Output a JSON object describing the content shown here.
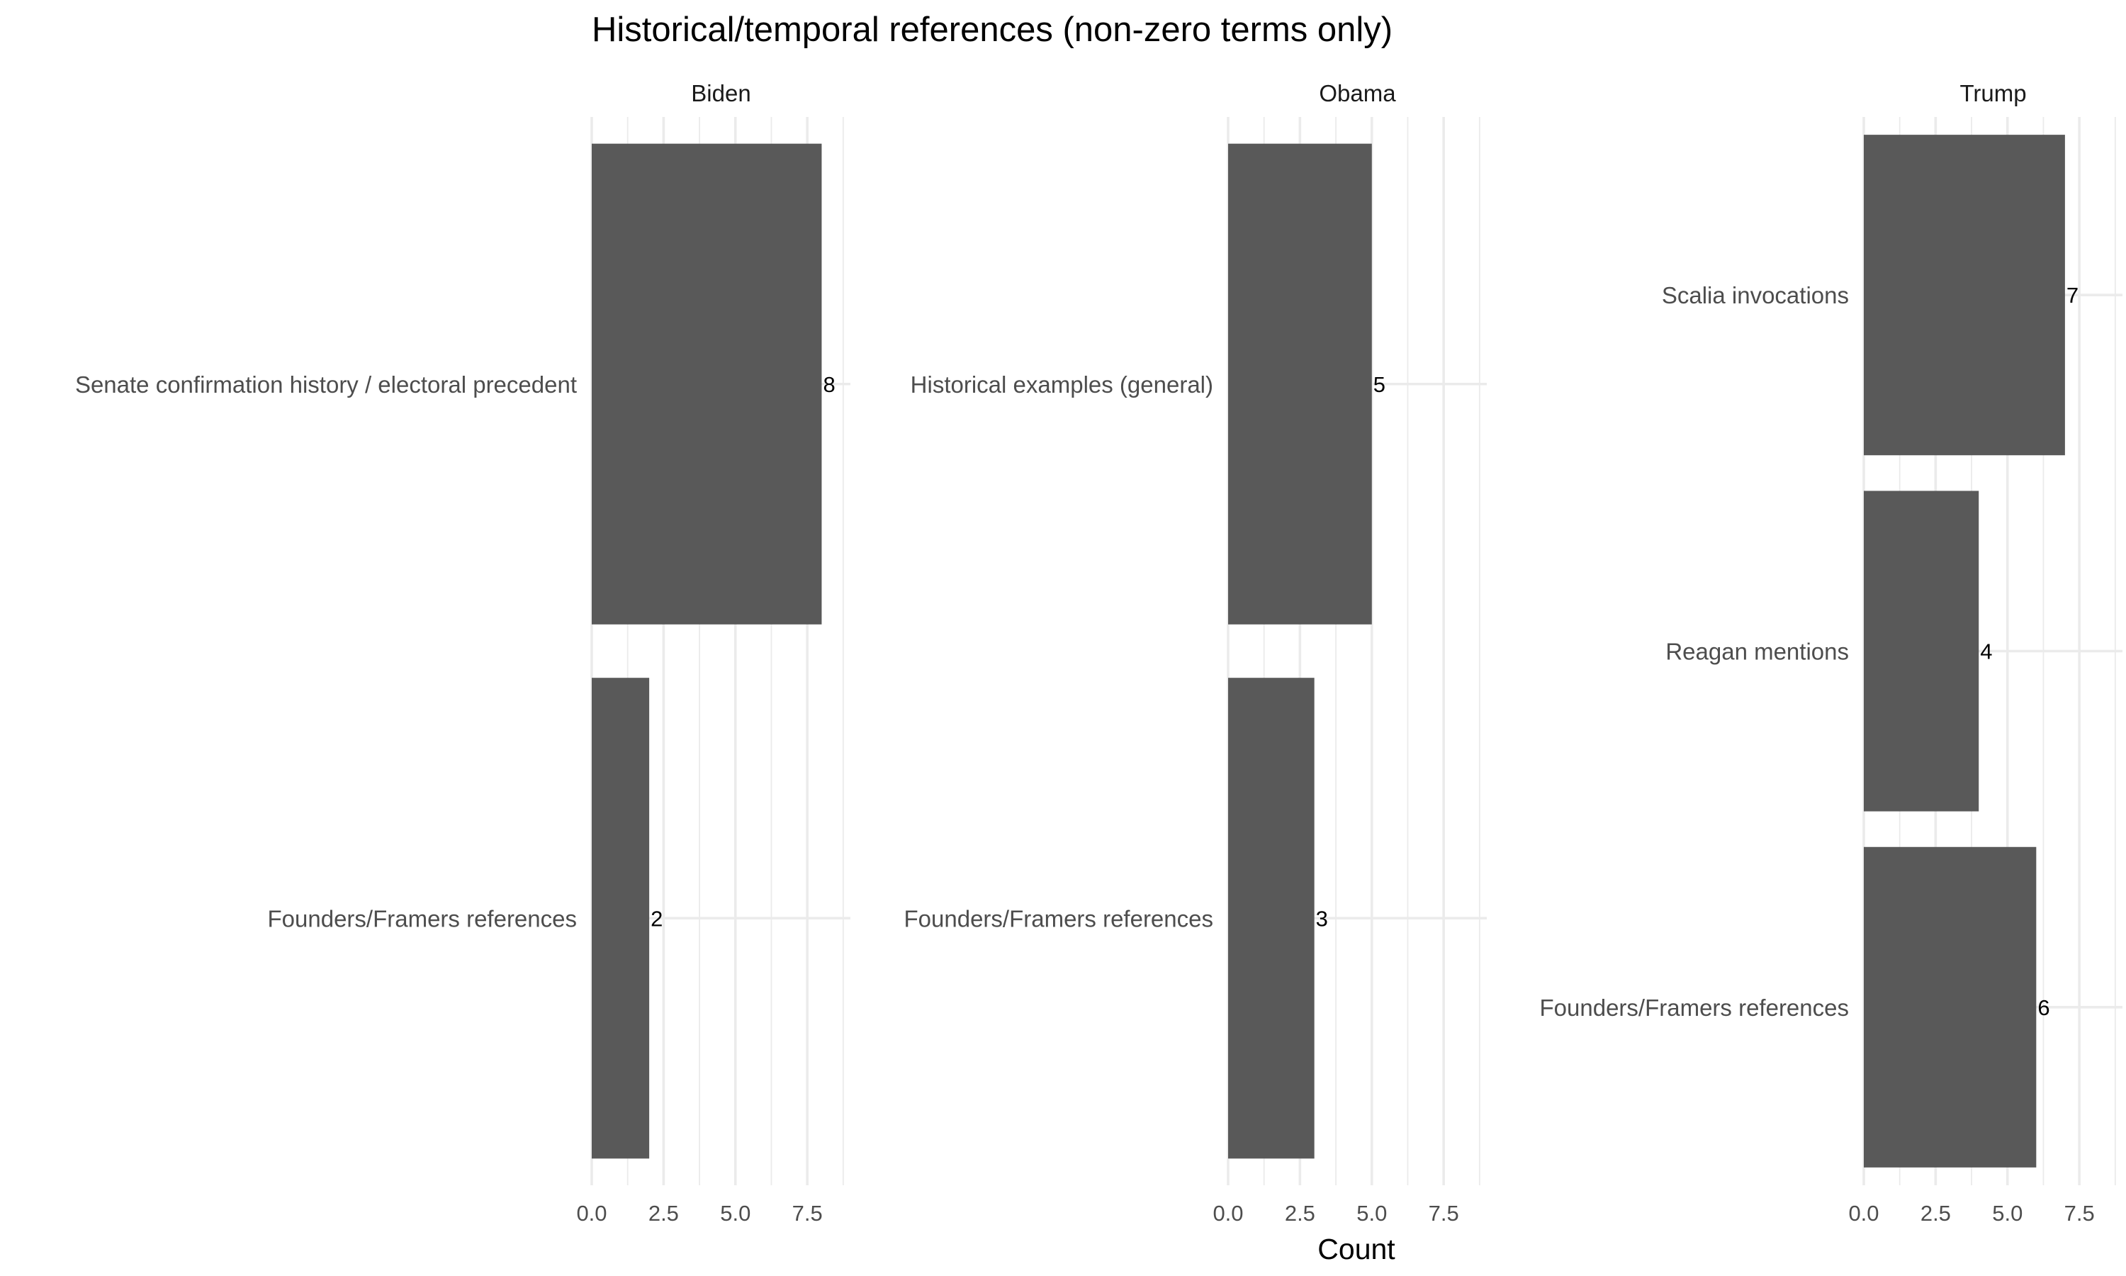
{
  "chart_data": {
    "type": "bar",
    "orientation": "horizontal",
    "title": "Historical/temporal references (non-zero terms only)",
    "xlabel": "Count",
    "ylabel": "",
    "xlim": [
      0,
      9
    ],
    "x_ticks": [
      0,
      2.5,
      5,
      7.5
    ],
    "x_tick_labels": [
      "0.0",
      "2.5",
      "5.0",
      "7.5"
    ],
    "grid": true,
    "bar_color": "#595959",
    "facets": [
      {
        "name": "Biden",
        "categories": [
          "Senate confirmation history / electoral precedent",
          "Founders/Framers references"
        ],
        "values": [
          8,
          2
        ]
      },
      {
        "name": "Obama",
        "categories": [
          "Historical examples (general)",
          "Founders/Framers references"
        ],
        "values": [
          5,
          3
        ]
      },
      {
        "name": "Trump",
        "categories": [
          "Scalia invocations",
          "Reagan mentions",
          "Founders/Framers references"
        ],
        "values": [
          7,
          4,
          6
        ]
      }
    ]
  }
}
